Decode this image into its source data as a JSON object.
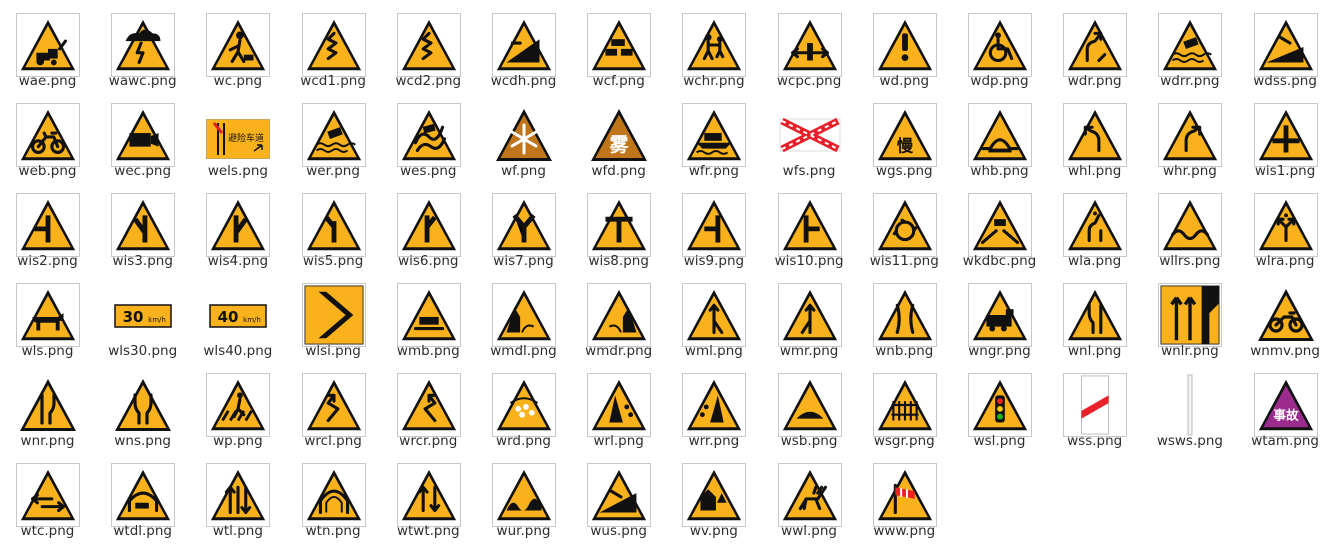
{
  "window": {
    "view": "file-manager-icon-grid"
  },
  "colors": {
    "sign_yellow": "#F9B21C",
    "sign_border": "#111111",
    "text": "#2e2e2e",
    "accident_purple": "#9B2C8E",
    "white_red": "#E8202A"
  },
  "files": [
    {
      "name": "wae.png",
      "icon": "tractor-warning-sign-icon",
      "kind": "tri-framed",
      "sym": "tractor"
    },
    {
      "name": "wawc.png",
      "icon": "adverse-weather-sign-icon",
      "kind": "sq-framed",
      "sym": "storm"
    },
    {
      "name": "wc.png",
      "icon": "construction-sign-icon",
      "kind": "tri-framed",
      "sym": "worker"
    },
    {
      "name": "wcd1.png",
      "icon": "continuous-curves-sign-icon",
      "kind": "tri-framed",
      "sym": "zigzag"
    },
    {
      "name": "wcd2.png",
      "icon": "continuous-curves-sign-icon",
      "kind": "tri-framed",
      "sym": "zigzag"
    },
    {
      "name": "wcdh.png",
      "icon": "downhill-sign-icon",
      "kind": "tri-framed",
      "sym": "slope"
    },
    {
      "name": "wcf.png",
      "icon": "congestion-sign-icon",
      "kind": "tri-framed",
      "sym": "cars"
    },
    {
      "name": "wchr.png",
      "icon": "children-sign-icon",
      "kind": "tri-framed",
      "sym": "children"
    },
    {
      "name": "wcpc.png",
      "icon": "two-way-traffic-sign-icon",
      "kind": "tri-framed",
      "sym": "arrows-h"
    },
    {
      "name": "wd.png",
      "icon": "danger-sign-icon",
      "kind": "tri-framed",
      "sym": "exclaim"
    },
    {
      "name": "wdp.png",
      "icon": "disabled-persons-sign-icon",
      "kind": "tri-framed",
      "sym": "wheelchair"
    },
    {
      "name": "wdr.png",
      "icon": "detour-sign-icon",
      "kind": "tri-framed",
      "sym": "detour"
    },
    {
      "name": "wdrr.png",
      "icon": "river-side-road-sign-icon",
      "kind": "tri-framed",
      "sym": "water-car"
    },
    {
      "name": "wdss.png",
      "icon": "dangerous-slope-sign-icon",
      "kind": "tri-framed",
      "sym": "slope2"
    },
    {
      "name": "web.png",
      "icon": "non-motor-vehicle-sign-icon",
      "kind": "tri-framed",
      "sym": "bike"
    },
    {
      "name": "wec.png",
      "icon": "camera-enforcement-sign-icon",
      "kind": "tri-framed",
      "sym": "camera"
    },
    {
      "name": "wels.png",
      "icon": "emergency-lane-sign-icon",
      "kind": "rect-orange",
      "sym": "emerg",
      "text": "避险车道"
    },
    {
      "name": "wer.png",
      "icon": "embankment-road-sign-icon",
      "kind": "tri-framed",
      "sym": "water-car"
    },
    {
      "name": "wes.png",
      "icon": "slippery-road-sign-icon",
      "kind": "tri-framed",
      "sym": "skid"
    },
    {
      "name": "wf.png",
      "icon": "icy-road-sign-icon",
      "kind": "tri-plain",
      "sym": "snow"
    },
    {
      "name": "wfd.png",
      "icon": "fog-sign-icon",
      "kind": "tri-plain",
      "sym": "fog",
      "text": "雾"
    },
    {
      "name": "wfr.png",
      "icon": "ferry-sign-icon",
      "kind": "tri-framed",
      "sym": "ferry"
    },
    {
      "name": "wfs.png",
      "icon": "red-white-crossbar-icon",
      "kind": "crossbar",
      "sym": "cross"
    },
    {
      "name": "wgs.png",
      "icon": "slow-down-sign-icon",
      "kind": "tri-framed",
      "sym": "slow",
      "text": "慢"
    },
    {
      "name": "whb.png",
      "icon": "hump-bridge-sign-icon",
      "kind": "tri-framed",
      "sym": "hump"
    },
    {
      "name": "whl.png",
      "icon": "sharp-left-curve-sign-icon",
      "kind": "tri-framed",
      "sym": "curve-l"
    },
    {
      "name": "whr.png",
      "icon": "sharp-right-curve-sign-icon",
      "kind": "tri-framed",
      "sym": "curve-r"
    },
    {
      "name": "wis1.png",
      "icon": "crossroad-sign-icon",
      "kind": "tri-framed",
      "sym": "cross-road"
    },
    {
      "name": "wis2.png",
      "icon": "junction-sign-icon",
      "kind": "tri-framed",
      "sym": "junc-2"
    },
    {
      "name": "wis3.png",
      "icon": "junction-sign-icon",
      "kind": "tri-framed",
      "sym": "junc-3"
    },
    {
      "name": "wis4.png",
      "icon": "junction-sign-icon",
      "kind": "tri-framed",
      "sym": "junc-4"
    },
    {
      "name": "wis5.png",
      "icon": "junction-sign-icon",
      "kind": "tri-framed",
      "sym": "junc-5"
    },
    {
      "name": "wis6.png",
      "icon": "junction-sign-icon",
      "kind": "tri-framed",
      "sym": "junc-6"
    },
    {
      "name": "wis7.png",
      "icon": "y-junction-sign-icon",
      "kind": "tri-framed",
      "sym": "junc-y"
    },
    {
      "name": "wis8.png",
      "icon": "t-junction-sign-icon",
      "kind": "tri-framed",
      "sym": "junc-t"
    },
    {
      "name": "wis9.png",
      "icon": "side-road-left-sign-icon",
      "kind": "tri-framed",
      "sym": "junc-9"
    },
    {
      "name": "wis10.png",
      "icon": "side-road-right-sign-icon",
      "kind": "tri-framed",
      "sym": "junc-10"
    },
    {
      "name": "wis11.png",
      "icon": "roundabout-sign-icon",
      "kind": "tri-framed",
      "sym": "roundabout"
    },
    {
      "name": "wkdbc.png",
      "icon": "keep-distance-sign-icon",
      "kind": "tri-framed",
      "sym": "distance"
    },
    {
      "name": "wla.png",
      "icon": "lane-ahead-sign-icon",
      "kind": "tri-framed",
      "sym": "wla"
    },
    {
      "name": "wllrs.png",
      "icon": "uneven-road-sign-icon",
      "kind": "tri-framed",
      "sym": "uneven"
    },
    {
      "name": "wlra.png",
      "icon": "left-right-detour-sign-icon",
      "kind": "tri-framed",
      "sym": "wlra"
    },
    {
      "name": "wls.png",
      "icon": "livestock-sign-icon",
      "kind": "tri-framed",
      "sym": "cow"
    },
    {
      "name": "wls30.png",
      "icon": "speed-30-plate-icon",
      "kind": "speed",
      "sym": "speed",
      "text": "30",
      "unit": "km/h"
    },
    {
      "name": "wls40.png",
      "icon": "speed-40-plate-icon",
      "kind": "speed",
      "sym": "speed",
      "text": "40",
      "unit": "km/h"
    },
    {
      "name": "wlsi.png",
      "icon": "chevron-sign-icon",
      "kind": "chevron",
      "sym": "chevron"
    },
    {
      "name": "wmb.png",
      "icon": "tunnel-car-sign-icon",
      "kind": "tri-framed",
      "sym": "wmb"
    },
    {
      "name": "wmdl.png",
      "icon": "mountain-left-sign-icon",
      "kind": "tri-framed",
      "sym": "cliff-l"
    },
    {
      "name": "wmdr.png",
      "icon": "mountain-right-sign-icon",
      "kind": "tri-framed",
      "sym": "cliff-r"
    },
    {
      "name": "wml.png",
      "icon": "merge-left-sign-icon",
      "kind": "tri-framed",
      "sym": "merge-l"
    },
    {
      "name": "wmr.png",
      "icon": "merge-right-sign-icon",
      "kind": "tri-framed",
      "sym": "merge-r"
    },
    {
      "name": "wnb.png",
      "icon": "narrow-bridge-sign-icon",
      "kind": "tri-framed",
      "sym": "narrow-b"
    },
    {
      "name": "wngr.png",
      "icon": "railway-crossing-sign-icon",
      "kind": "tri-framed",
      "sym": "train"
    },
    {
      "name": "wnl.png",
      "icon": "narrow-left-sign-icon",
      "kind": "tri-framed",
      "sym": "narrow-l"
    },
    {
      "name": "wnlr.png",
      "icon": "lanes-sign-icon",
      "kind": "lanes",
      "sym": "lanes"
    },
    {
      "name": "wnmv.png",
      "icon": "cyclist-sign-icon",
      "kind": "tri-plain",
      "sym": "bike2"
    },
    {
      "name": "wnr.png",
      "icon": "narrow-right-sign-icon",
      "kind": "tri-plain",
      "sym": "narrow-r"
    },
    {
      "name": "wns.png",
      "icon": "narrow-both-sign-icon",
      "kind": "tri-plain",
      "sym": "narrow-s"
    },
    {
      "name": "wp.png",
      "icon": "pedestrian-crossing-sign-icon",
      "kind": "tri-framed",
      "sym": "ped"
    },
    {
      "name": "wrcl.png",
      "icon": "reverse-curve-left-sign-icon",
      "kind": "tri-framed",
      "sym": "rev-l"
    },
    {
      "name": "wrcr.png",
      "icon": "reverse-curve-right-sign-icon",
      "kind": "tri-framed",
      "sym": "rev-r"
    },
    {
      "name": "wrd.png",
      "icon": "rockfall-sign-icon",
      "kind": "tri-framed",
      "sym": "rocks"
    },
    {
      "name": "wrl.png",
      "icon": "falling-rocks-left-sign-icon",
      "kind": "tri-framed",
      "sym": "fall-l"
    },
    {
      "name": "wrr.png",
      "icon": "falling-rocks-right-sign-icon",
      "kind": "tri-framed",
      "sym": "fall-r"
    },
    {
      "name": "wsb.png",
      "icon": "speed-bump-sign-icon",
      "kind": "tri-framed",
      "sym": "bump"
    },
    {
      "name": "wsgr.png",
      "icon": "guarded-rail-crossing-sign-icon",
      "kind": "tri-framed",
      "sym": "fence"
    },
    {
      "name": "wsl.png",
      "icon": "traffic-signals-sign-icon",
      "kind": "tri-framed",
      "sym": "lights"
    },
    {
      "name": "wss.png",
      "icon": "red-white-barrier-icon",
      "kind": "barrier",
      "sym": "barrier"
    },
    {
      "name": "wsws.png",
      "icon": "white-post-icon",
      "kind": "post",
      "sym": "post"
    },
    {
      "name": "wtam.png",
      "icon": "accident-zone-sign-icon",
      "kind": "tri-purple",
      "sym": "accident",
      "text": "事故"
    },
    {
      "name": "wtc.png",
      "icon": "two-way-traffic-sign-icon",
      "kind": "tri-framed",
      "sym": "arrows-h2"
    },
    {
      "name": "wtdl.png",
      "icon": "tunnel-lights-sign-icon",
      "kind": "tri-framed",
      "sym": "tunnel-car"
    },
    {
      "name": "wtl.png",
      "icon": "two-way-lanes-sign-icon",
      "kind": "tri-framed",
      "sym": "twoway-v"
    },
    {
      "name": "wtn.png",
      "icon": "tunnel-sign-icon",
      "kind": "tri-framed",
      "sym": "tunnel"
    },
    {
      "name": "wtwt.png",
      "icon": "two-way-traffic-sign-icon",
      "kind": "tri-framed",
      "sym": "updown"
    },
    {
      "name": "wur.png",
      "icon": "uneven-road-sign-icon",
      "kind": "tri-framed",
      "sym": "bumpy"
    },
    {
      "name": "wus.png",
      "icon": "steep-slope-sign-icon",
      "kind": "tri-framed",
      "sym": "slope3"
    },
    {
      "name": "wv.png",
      "icon": "village-sign-icon",
      "kind": "tri-framed",
      "sym": "village"
    },
    {
      "name": "wwl.png",
      "icon": "wild-animals-sign-icon",
      "kind": "tri-framed",
      "sym": "deer"
    },
    {
      "name": "www.png",
      "icon": "crosswind-sign-icon",
      "kind": "tri-framed",
      "sym": "windsock"
    }
  ]
}
